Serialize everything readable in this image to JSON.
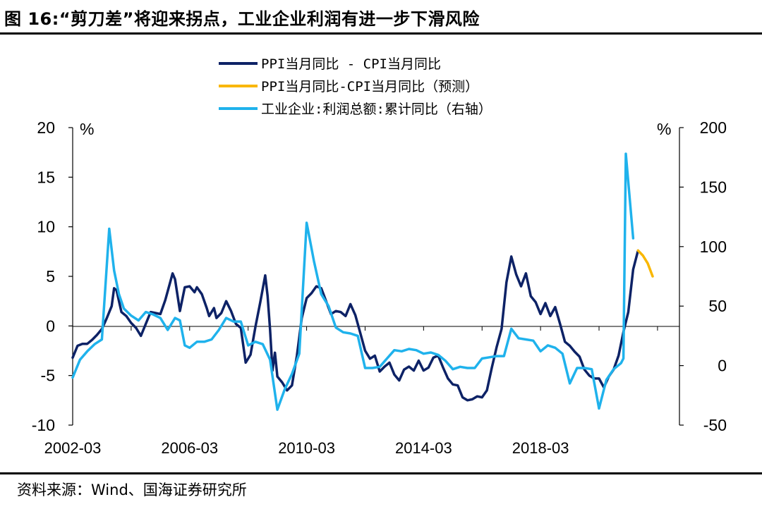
{
  "title": "图 16:“剪刀差”将迎来拐点，工业企业利润有进一步下滑风险",
  "source": "资料来源：Wind、国海证券研究所",
  "chart_data": {
    "type": "line",
    "left_unit": "%",
    "right_unit": "%",
    "left_axis": {
      "min": -10,
      "max": 20,
      "ticks": [
        -10,
        -5,
        0,
        5,
        10,
        15,
        20
      ],
      "tick_labels": [
        "-10",
        "-5",
        "0",
        "5",
        "10",
        "15",
        "20"
      ]
    },
    "right_axis": {
      "min": -50,
      "max": 200,
      "ticks": [
        -50,
        0,
        50,
        100,
        150,
        200
      ],
      "tick_labels": [
        "-50",
        "0",
        "50",
        "100",
        "150",
        "200"
      ]
    },
    "x_axis": {
      "start": "2002-03",
      "end": "2022-12",
      "tick_labels": [
        "2002-03",
        "2006-03",
        "2010-03",
        "2014-03",
        "2018-03"
      ]
    },
    "legend_position": "top-center",
    "grid": false,
    "series": [
      {
        "name": "PPI当月同比 - CPI当月同比",
        "color": "#0d2266",
        "axis": "left",
        "points": [
          [
            "2002-03",
            -3.2
          ],
          [
            "2002-05",
            -2.0
          ],
          [
            "2002-07",
            -1.8
          ],
          [
            "2002-09",
            -1.8
          ],
          [
            "2002-11",
            -1.4
          ],
          [
            "2003-01",
            -0.9
          ],
          [
            "2003-03",
            -0.3
          ],
          [
            "2003-05",
            0.8
          ],
          [
            "2003-07",
            2.0
          ],
          [
            "2003-08",
            3.8
          ],
          [
            "2003-09",
            3.6
          ],
          [
            "2003-11",
            1.4
          ],
          [
            "2004-01",
            1.0
          ],
          [
            "2004-03",
            0.3
          ],
          [
            "2004-05",
            -0.2
          ],
          [
            "2004-07",
            -1.0
          ],
          [
            "2004-09",
            0.2
          ],
          [
            "2004-11",
            1.4
          ],
          [
            "2005-01",
            1.3
          ],
          [
            "2005-03",
            1.2
          ],
          [
            "2005-05",
            2.6
          ],
          [
            "2005-07",
            4.4
          ],
          [
            "2005-08",
            5.3
          ],
          [
            "2005-09",
            4.7
          ],
          [
            "2005-11",
            1.5
          ],
          [
            "2006-01",
            3.9
          ],
          [
            "2006-03",
            4.0
          ],
          [
            "2006-05",
            3.4
          ],
          [
            "2006-06",
            3.9
          ],
          [
            "2006-08",
            3.2
          ],
          [
            "2006-10",
            1.8
          ],
          [
            "2006-11",
            1.0
          ],
          [
            "2007-01",
            1.8
          ],
          [
            "2007-02",
            0.8
          ],
          [
            "2007-04",
            1.3
          ],
          [
            "2007-06",
            2.5
          ],
          [
            "2007-08",
            1.5
          ],
          [
            "2007-10",
            0.2
          ],
          [
            "2007-12",
            -0.2
          ],
          [
            "2008-02",
            -3.7
          ],
          [
            "2008-04",
            -2.9
          ],
          [
            "2008-06",
            -0.1
          ],
          [
            "2008-08",
            2.4
          ],
          [
            "2008-10",
            5.1
          ],
          [
            "2008-11",
            3.0
          ],
          [
            "2008-12",
            -0.4
          ],
          [
            "2009-01",
            -4.5
          ],
          [
            "2009-02",
            -2.7
          ],
          [
            "2009-03",
            -5.1
          ],
          [
            "2009-05",
            -5.7
          ],
          [
            "2009-07",
            -6.5
          ],
          [
            "2009-09",
            -6.0
          ],
          [
            "2009-11",
            -3.0
          ],
          [
            "2010-01",
            0.8
          ],
          [
            "2010-03",
            2.8
          ],
          [
            "2010-05",
            3.3
          ],
          [
            "2010-07",
            4.0
          ],
          [
            "2010-09",
            3.8
          ],
          [
            "2010-11",
            2.5
          ],
          [
            "2011-01",
            1.2
          ],
          [
            "2011-03",
            1.5
          ],
          [
            "2011-05",
            1.4
          ],
          [
            "2011-07",
            1.0
          ],
          [
            "2011-09",
            2.2
          ],
          [
            "2011-11",
            1.1
          ],
          [
            "2012-01",
            -0.7
          ],
          [
            "2012-03",
            -2.5
          ],
          [
            "2012-05",
            -3.3
          ],
          [
            "2012-07",
            -3.0
          ],
          [
            "2012-09",
            -4.6
          ],
          [
            "2012-11",
            -4.1
          ],
          [
            "2013-01",
            -3.7
          ],
          [
            "2013-03",
            -4.9
          ],
          [
            "2013-05",
            -5.5
          ],
          [
            "2013-07",
            -4.4
          ],
          [
            "2013-09",
            -4.1
          ],
          [
            "2013-11",
            -4.5
          ],
          [
            "2014-01",
            -3.5
          ],
          [
            "2014-03",
            -4.5
          ],
          [
            "2014-05",
            -4.2
          ],
          [
            "2014-07",
            -3.2
          ],
          [
            "2014-09",
            -3.0
          ],
          [
            "2014-11",
            -4.2
          ],
          [
            "2015-01",
            -5.3
          ],
          [
            "2015-03",
            -5.9
          ],
          [
            "2015-05",
            -6.0
          ],
          [
            "2015-07",
            -7.2
          ],
          [
            "2015-09",
            -7.5
          ],
          [
            "2015-11",
            -7.4
          ],
          [
            "2016-01",
            -7.1
          ],
          [
            "2016-03",
            -7.2
          ],
          [
            "2016-05",
            -6.5
          ],
          [
            "2016-07",
            -4.2
          ],
          [
            "2016-09",
            -2.1
          ],
          [
            "2016-11",
            -0.3
          ],
          [
            "2017-01",
            4.4
          ],
          [
            "2017-03",
            7.0
          ],
          [
            "2017-05",
            5.2
          ],
          [
            "2017-07",
            4.0
          ],
          [
            "2017-09",
            5.3
          ],
          [
            "2017-11",
            3.0
          ],
          [
            "2018-01",
            2.4
          ],
          [
            "2018-03",
            1.2
          ],
          [
            "2018-05",
            2.3
          ],
          [
            "2018-07",
            1.0
          ],
          [
            "2018-09",
            1.9
          ],
          [
            "2018-11",
            0.2
          ],
          [
            "2019-01",
            -1.6
          ],
          [
            "2019-03",
            -2.0
          ],
          [
            "2019-05",
            -2.6
          ],
          [
            "2019-07",
            -3.1
          ],
          [
            "2019-09",
            -4.4
          ],
          [
            "2019-11",
            -5.0
          ],
          [
            "2020-01",
            -5.3
          ],
          [
            "2020-03",
            -5.3
          ],
          [
            "2020-05",
            -6.2
          ],
          [
            "2020-07",
            -5.1
          ],
          [
            "2020-09",
            -4.4
          ],
          [
            "2020-11",
            -3.0
          ],
          [
            "2021-01",
            -0.6
          ],
          [
            "2021-03",
            1.4
          ],
          [
            "2021-05",
            5.7
          ],
          [
            "2021-07",
            7.6
          ]
        ]
      },
      {
        "name": "PPI当月同比-CPI当月同比（预测）",
        "color": "#f9b700",
        "axis": "left",
        "points": [
          [
            "2021-07",
            7.6
          ],
          [
            "2021-09",
            7.1
          ],
          [
            "2021-11",
            6.3
          ],
          [
            "2022-01",
            5.0
          ]
        ]
      },
      {
        "name": "工业企业:利润总额:累计同比（右轴）",
        "color": "#1fb2ec",
        "axis": "right",
        "points": [
          [
            "2002-03",
            -10
          ],
          [
            "2002-06",
            5
          ],
          [
            "2002-09",
            12
          ],
          [
            "2002-12",
            18
          ],
          [
            "2003-03",
            22
          ],
          [
            "2003-06",
            115
          ],
          [
            "2003-08",
            80
          ],
          [
            "2003-10",
            60
          ],
          [
            "2003-12",
            48
          ],
          [
            "2004-03",
            42
          ],
          [
            "2004-06",
            38
          ],
          [
            "2004-09",
            45
          ],
          [
            "2004-12",
            43
          ],
          [
            "2005-03",
            40
          ],
          [
            "2005-06",
            30
          ],
          [
            "2005-09",
            40
          ],
          [
            "2005-11",
            38
          ],
          [
            "2006-01",
            17
          ],
          [
            "2006-03",
            15
          ],
          [
            "2006-06",
            20
          ],
          [
            "2006-09",
            20
          ],
          [
            "2006-12",
            22
          ],
          [
            "2007-03",
            30
          ],
          [
            "2007-06",
            40
          ],
          [
            "2007-09",
            37
          ],
          [
            "2007-12",
            37
          ],
          [
            "2008-03",
            17
          ],
          [
            "2008-06",
            20
          ],
          [
            "2008-09",
            18
          ],
          [
            "2008-12",
            5
          ],
          [
            "2009-03",
            -37
          ],
          [
            "2009-06",
            -20
          ],
          [
            "2009-09",
            -7
          ],
          [
            "2009-12",
            10
          ],
          [
            "2010-03",
            120
          ],
          [
            "2010-06",
            88
          ],
          [
            "2010-09",
            60
          ],
          [
            "2010-12",
            50
          ],
          [
            "2011-03",
            32
          ],
          [
            "2011-06",
            28
          ],
          [
            "2011-09",
            27
          ],
          [
            "2011-12",
            25
          ],
          [
            "2012-03",
            -2
          ],
          [
            "2012-06",
            -2
          ],
          [
            "2012-09",
            -1
          ],
          [
            "2012-12",
            6
          ],
          [
            "2013-03",
            13
          ],
          [
            "2013-06",
            12
          ],
          [
            "2013-09",
            14
          ],
          [
            "2013-12",
            13
          ],
          [
            "2014-03",
            10
          ],
          [
            "2014-06",
            11
          ],
          [
            "2014-09",
            9
          ],
          [
            "2014-12",
            4
          ],
          [
            "2015-03",
            -3
          ],
          [
            "2015-06",
            -1
          ],
          [
            "2015-09",
            -2
          ],
          [
            "2015-12",
            -2
          ],
          [
            "2016-03",
            6
          ],
          [
            "2016-06",
            7
          ],
          [
            "2016-09",
            8
          ],
          [
            "2016-12",
            8
          ],
          [
            "2017-03",
            31
          ],
          [
            "2017-06",
            23
          ],
          [
            "2017-09",
            22
          ],
          [
            "2017-12",
            21
          ],
          [
            "2018-03",
            12
          ],
          [
            "2018-06",
            17
          ],
          [
            "2018-09",
            15
          ],
          [
            "2018-12",
            10
          ],
          [
            "2019-03",
            -15
          ],
          [
            "2019-06",
            -2
          ],
          [
            "2019-09",
            -2
          ],
          [
            "2019-12",
            -3
          ],
          [
            "2020-03",
            -36
          ],
          [
            "2020-06",
            -12
          ],
          [
            "2020-09",
            -3
          ],
          [
            "2020-12",
            2
          ],
          [
            "2021-01",
            6
          ],
          [
            "2021-02",
            178
          ],
          [
            "2021-05",
            107
          ]
        ]
      }
    ]
  }
}
